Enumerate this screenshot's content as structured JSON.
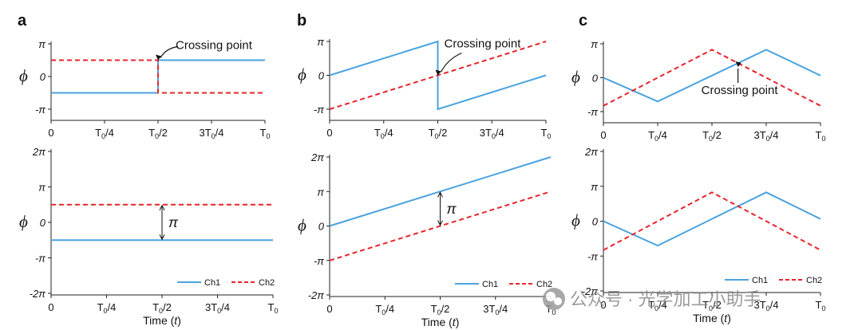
{
  "chart_data": [
    {
      "panel": "a",
      "row": "top",
      "type": "line",
      "ylabel": "ϕ",
      "xticks": [
        "0",
        "T0/4",
        "T0/2",
        "3T0/4",
        "T0"
      ],
      "yticks": [
        "π",
        "0",
        "-π"
      ],
      "ylim": [
        -3.1416,
        3.1416
      ],
      "xlim": [
        0,
        1
      ],
      "series": [
        {
          "name": "Ch1",
          "color": "#4aa3df",
          "dash": false,
          "x": [
            0,
            0.5,
            0.5,
            1
          ],
          "y": [
            -1.5708,
            -1.5708,
            1.5708,
            1.5708
          ]
        },
        {
          "name": "Ch2",
          "color": "#e8242c",
          "dash": true,
          "x": [
            0,
            0.5,
            0.5,
            1
          ],
          "y": [
            1.5708,
            1.5708,
            -1.5708,
            -1.5708
          ]
        }
      ],
      "annotations": [
        {
          "text": "Crossing point",
          "x": 0.5,
          "y": 1.5708
        }
      ]
    },
    {
      "panel": "a",
      "row": "bottom",
      "type": "line",
      "ylabel": "ϕ",
      "xlabel": "Time (t)",
      "xticks": [
        "0",
        "T0/4",
        "T0/2",
        "3T0/4",
        "T0"
      ],
      "yticks": [
        "2π",
        "π",
        "0",
        "-π",
        "-2π"
      ],
      "ylim": [
        -6.2832,
        6.2832
      ],
      "xlim": [
        0,
        1
      ],
      "series": [
        {
          "name": "Ch1",
          "color": "#4aa3df",
          "dash": false,
          "x": [
            0,
            1
          ],
          "y": [
            -1.5708,
            -1.5708
          ]
        },
        {
          "name": "Ch2",
          "color": "#e8242c",
          "dash": true,
          "x": [
            0,
            1
          ],
          "y": [
            1.5708,
            1.5708
          ]
        }
      ],
      "annotations": [
        {
          "text": "π",
          "x": 0.5,
          "y": 0
        }
      ],
      "legend": [
        "Ch1",
        "Ch2"
      ]
    },
    {
      "panel": "b",
      "row": "top",
      "type": "line",
      "ylabel": "ϕ",
      "xticks": [
        "0",
        "T0/4",
        "T0/2",
        "3T0/4",
        "T0"
      ],
      "yticks": [
        "π",
        "0",
        "-π"
      ],
      "ylim": [
        -3.1416,
        3.1416
      ],
      "xlim": [
        0,
        1
      ],
      "series": [
        {
          "name": "Ch1",
          "color": "#4aa3df",
          "dash": false,
          "x": [
            0,
            0.5,
            0.5,
            1
          ],
          "y": [
            0,
            3.1416,
            -3.1416,
            0
          ]
        },
        {
          "name": "Ch2",
          "color": "#e8242c",
          "dash": true,
          "x": [
            0,
            1
          ],
          "y": [
            -3.1416,
            3.1416
          ]
        }
      ],
      "annotations": [
        {
          "text": "Crossing point",
          "x": 0.5,
          "y": 0
        }
      ]
    },
    {
      "panel": "b",
      "row": "bottom",
      "type": "line",
      "ylabel": "ϕ",
      "xlabel": "Time (t)",
      "xticks": [
        "0",
        "T0/4",
        "T0/2",
        "3T0/4",
        "T0"
      ],
      "yticks": [
        "2π",
        "π",
        "0",
        "-π",
        "-2π"
      ],
      "ylim": [
        -6.2832,
        6.2832
      ],
      "xlim": [
        0,
        1
      ],
      "series": [
        {
          "name": "Ch1",
          "color": "#4aa3df",
          "dash": false,
          "x": [
            0,
            1
          ],
          "y": [
            0,
            6.2832
          ]
        },
        {
          "name": "Ch2",
          "color": "#e8242c",
          "dash": true,
          "x": [
            0,
            1
          ],
          "y": [
            -3.1416,
            3.1416
          ]
        }
      ],
      "annotations": [
        {
          "text": "π",
          "x": 0.5,
          "y": 1.5708
        }
      ],
      "legend": [
        "Ch1",
        "Ch2"
      ]
    },
    {
      "panel": "c",
      "row": "top",
      "type": "line",
      "ylabel": "ϕ",
      "xticks": [
        "0",
        "T0/4",
        "T0/2",
        "3T0/4",
        "T0"
      ],
      "yticks": [
        "π",
        "0",
        "-π"
      ],
      "ylim": [
        -3.1416,
        3.1416
      ],
      "xlim": [
        0,
        1
      ],
      "series": [
        {
          "name": "Ch1",
          "color": "#4aa3df",
          "dash": false,
          "x": [
            0,
            0.25,
            0.75,
            1
          ],
          "y": [
            0,
            -2.2,
            2.6,
            0.2
          ]
        },
        {
          "name": "Ch2",
          "color": "#e8242c",
          "dash": true,
          "x": [
            0,
            0.5,
            1
          ],
          "y": [
            -2.6,
            2.6,
            -2.6
          ]
        }
      ],
      "annotations": [
        {
          "text": "Crossing point",
          "x": 0.62,
          "y": 1.0
        }
      ]
    },
    {
      "panel": "c",
      "row": "bottom",
      "type": "line",
      "ylabel": "ϕ",
      "xlabel": "Time (t)",
      "xticks": [
        "0",
        "T0/4",
        "T0/2",
        "3T0/4",
        "T0"
      ],
      "yticks": [
        "2π",
        "π",
        "0",
        "-π",
        "-2π"
      ],
      "ylim": [
        -6.2832,
        6.2832
      ],
      "xlim": [
        0,
        1
      ],
      "series": [
        {
          "name": "Ch1",
          "color": "#4aa3df",
          "dash": false,
          "x": [
            0,
            0.25,
            0.75,
            1
          ],
          "y": [
            0,
            -2.2,
            2.6,
            0.2
          ]
        },
        {
          "name": "Ch2",
          "color": "#e8242c",
          "dash": true,
          "x": [
            0,
            0.5,
            1
          ],
          "y": [
            -2.6,
            2.6,
            -2.6
          ]
        }
      ],
      "legend": [
        "Ch1",
        "Ch2"
      ]
    }
  ],
  "panel_labels": [
    "a",
    "b",
    "c"
  ],
  "watermark": "公众号 · 光学加工小助手"
}
